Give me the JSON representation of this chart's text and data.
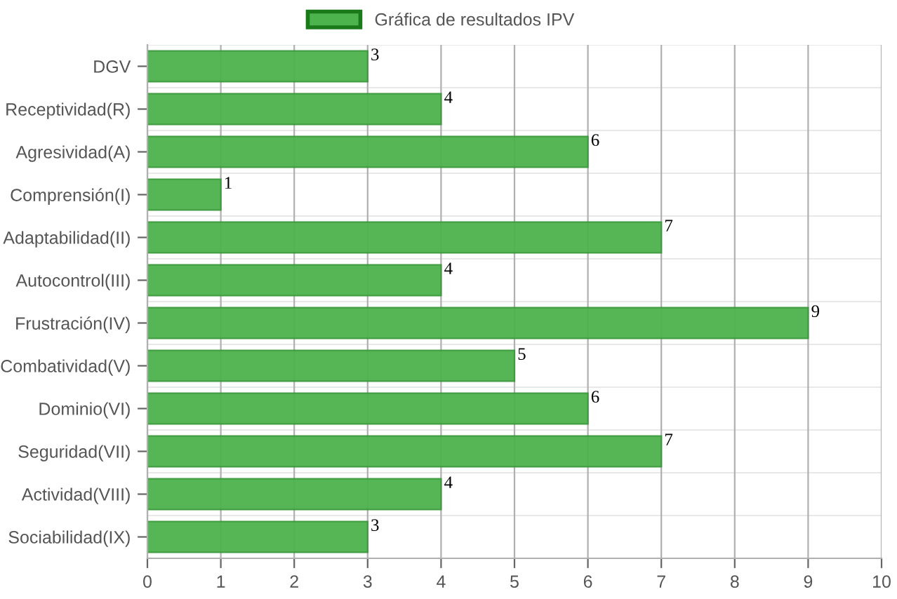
{
  "chart_data": {
    "type": "bar",
    "orientation": "horizontal",
    "categories": [
      "DGV",
      "Receptividad(R)",
      "Agresividad(A)",
      "Comprensión(I)",
      "Adaptabilidad(II)",
      "Autocontrol(III)",
      "Frustración(IV)",
      "Combatividad(V)",
      "Dominio(VI)",
      "Seguridad(VII)",
      "Actividad(VIII)",
      "Sociabilidad(IX)"
    ],
    "series": [
      {
        "name": "Gráfica de resultados IPV",
        "color": "#4db34d",
        "values": [
          3,
          4,
          6,
          1,
          7,
          4,
          9,
          5,
          6,
          7,
          4,
          3
        ]
      }
    ],
    "xlim": [
      0,
      10
    ],
    "xticks": [
      0,
      1,
      2,
      3,
      4,
      5,
      6,
      7,
      8,
      9,
      10
    ],
    "grid": "x",
    "legend": "top",
    "data_labels": true
  }
}
